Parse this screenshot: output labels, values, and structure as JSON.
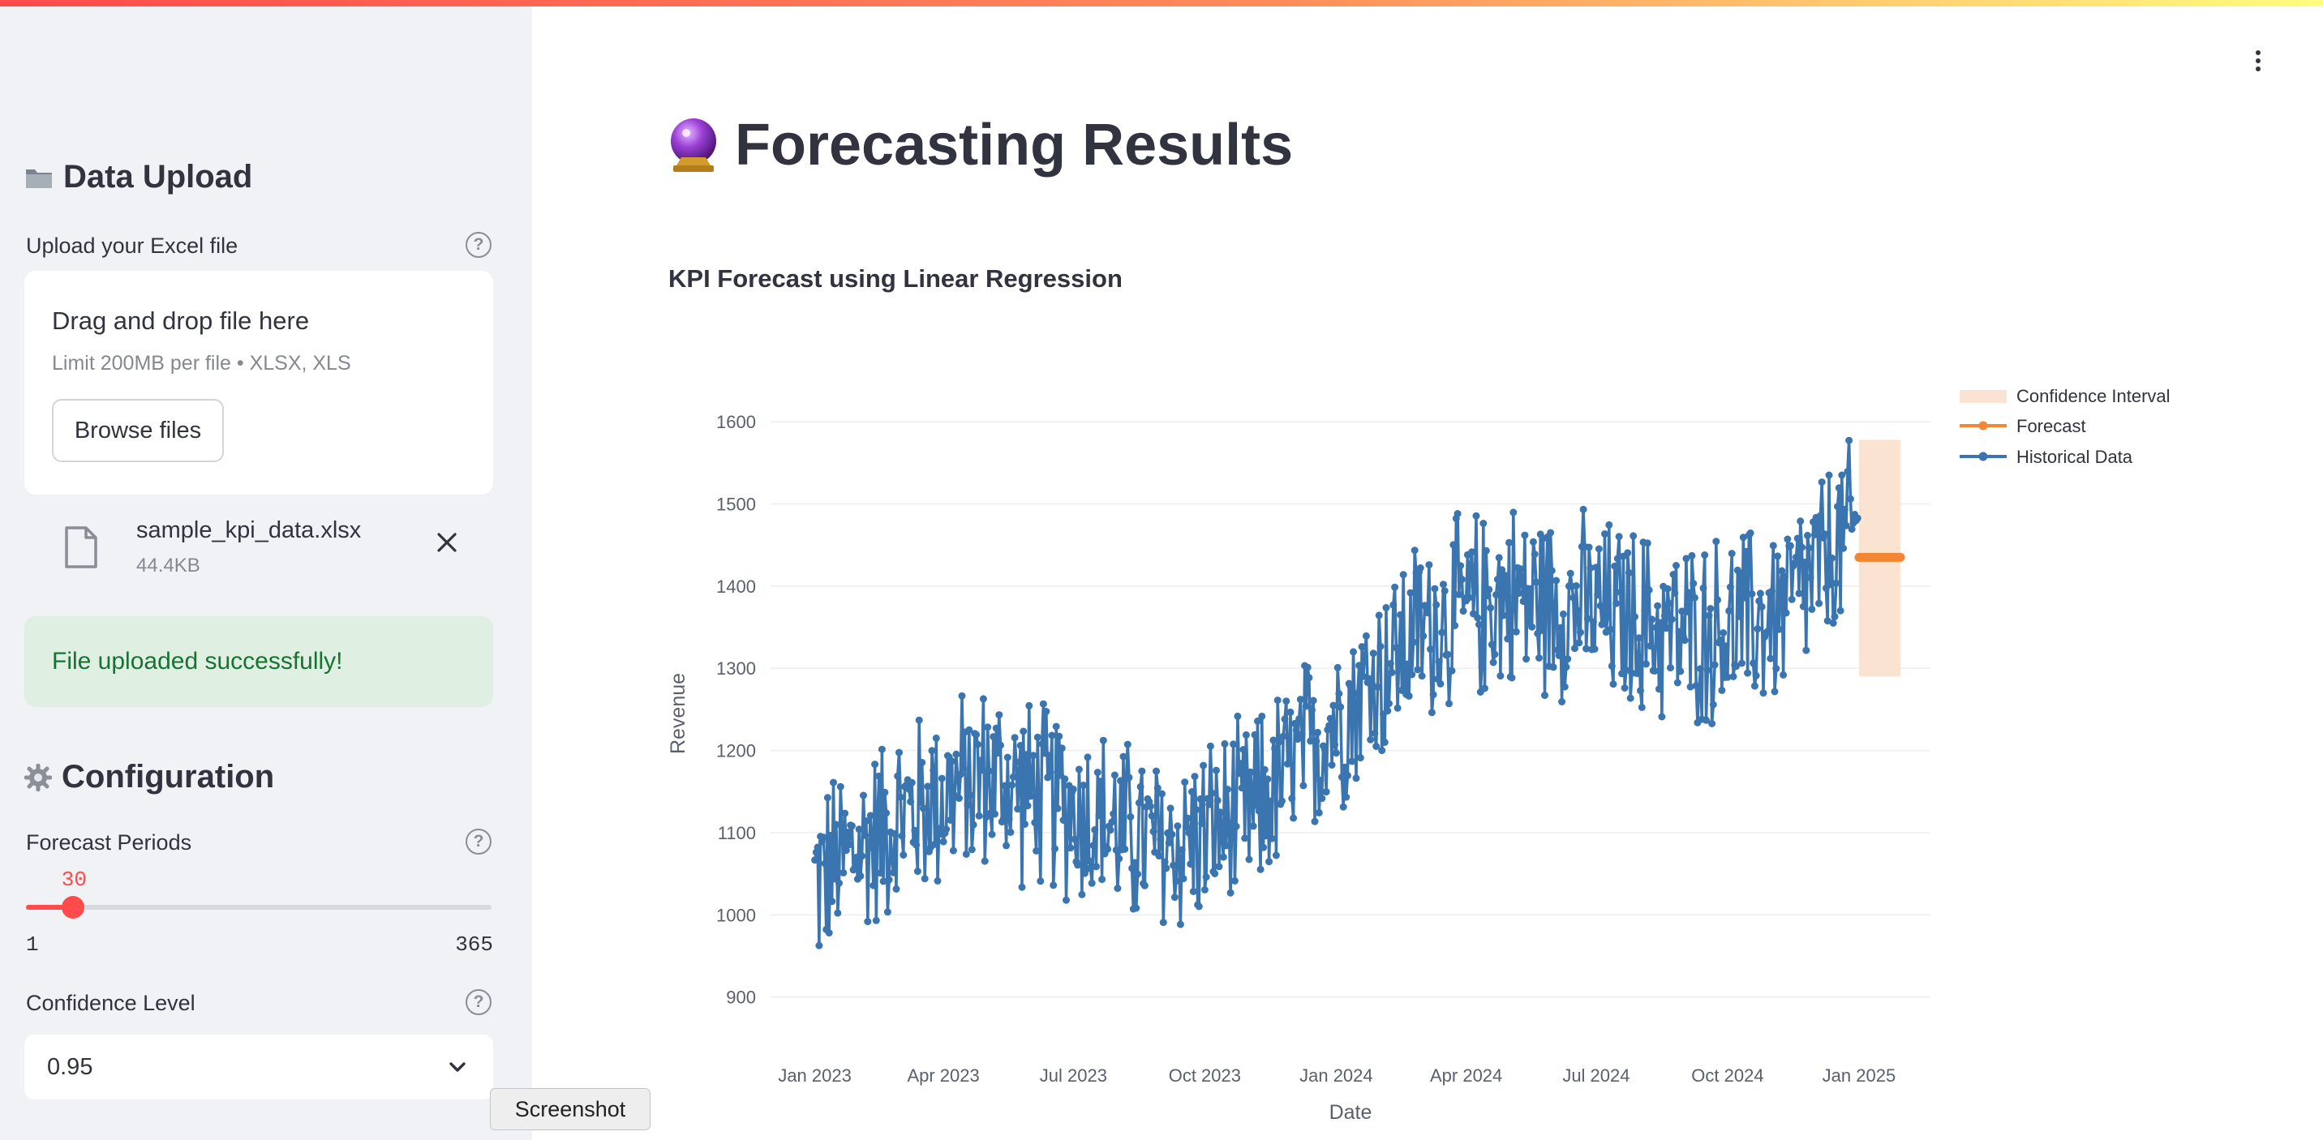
{
  "sidebar": {
    "upload_header": "Data Upload",
    "upload_label": "Upload your Excel file",
    "uploader": {
      "drag_text": "Drag and drop file here",
      "limit_text": "Limit 200MB per file • XLSX, XLS",
      "browse_label": "Browse files"
    },
    "file": {
      "name": "sample_kpi_data.xlsx",
      "size": "44.4KB"
    },
    "success_message": "File uploaded successfully!",
    "config_header": "Configuration",
    "forecast_periods": {
      "label": "Forecast Periods",
      "value": 30,
      "value_text": "30",
      "min": "1",
      "max": "365"
    },
    "confidence": {
      "label": "Confidence Level",
      "value": "0.95"
    }
  },
  "main": {
    "title": "Forecasting Results",
    "chart_title": "KPI Forecast using Linear Regression"
  },
  "tooltip": "Screenshot",
  "colors": {
    "accent": "#ff4b4b",
    "historical": "#3a75b0",
    "forecast": "#f28632",
    "confidence": "#fbe3d2",
    "success_bg": "#dff0e2",
    "success_text": "#177233"
  },
  "chart_data": {
    "type": "line",
    "xlabel": "Date",
    "ylabel": "Revenue",
    "ylim": [
      880,
      1610
    ],
    "y_ticks": [
      "900",
      "1000",
      "1100",
      "1200",
      "1300",
      "1400",
      "1500",
      "1600"
    ],
    "x_ticks": [
      "Jan 2023",
      "Apr 2023",
      "Jul 2023",
      "Oct 2023",
      "Jan 2024",
      "Apr 2024",
      "Jul 2024",
      "Oct 2024",
      "Jan 2025"
    ],
    "legend": [
      "Confidence Interval",
      "Forecast",
      "Historical Data"
    ],
    "legend_position": "top-right",
    "series": [
      {
        "name": "Historical Data",
        "x_range": [
          "2023-01-01",
          "2024-12-31"
        ],
        "trend": [
          {
            "x": "2023-01-01",
            "y": 1040
          },
          {
            "x": "2023-03-01",
            "y": 1120
          },
          {
            "x": "2023-05-01",
            "y": 1170
          },
          {
            "x": "2023-07-01",
            "y": 1130
          },
          {
            "x": "2023-09-01",
            "y": 1080
          },
          {
            "x": "2023-11-01",
            "y": 1120
          },
          {
            "x": "2024-01-01",
            "y": 1240
          },
          {
            "x": "2024-03-01",
            "y": 1350
          },
          {
            "x": "2024-05-01",
            "y": 1390
          },
          {
            "x": "2024-07-01",
            "y": 1370
          },
          {
            "x": "2024-09-01",
            "y": 1340
          },
          {
            "x": "2024-11-01",
            "y": 1360
          },
          {
            "x": "2024-12-31",
            "y": 1470
          }
        ],
        "noise_amplitude": 110
      },
      {
        "name": "Forecast",
        "x_range": [
          "2025-01-01",
          "2025-01-30"
        ],
        "y": 1435
      },
      {
        "name": "Confidence Interval",
        "x_range": [
          "2025-01-01",
          "2025-01-30"
        ],
        "lower": 1290,
        "upper": 1578
      }
    ]
  }
}
